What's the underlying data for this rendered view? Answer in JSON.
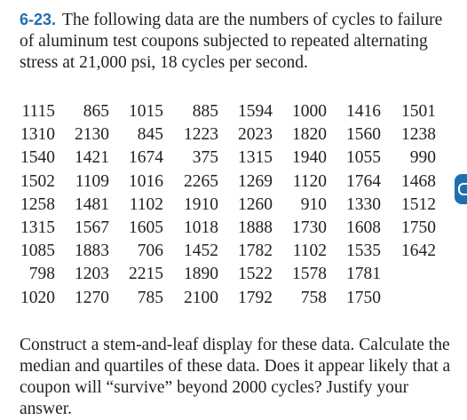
{
  "problem": {
    "number": "6-23.",
    "text": "The following data are the numbers of cycles to failure of aluminum test coupons subjected to repeated alternating stress at 21,000 psi, 18 cycles per second."
  },
  "data_rows": [
    [
      "1115",
      "865",
      "1015",
      "885",
      "1594",
      "1000",
      "1416",
      "1501"
    ],
    [
      "1310",
      "2130",
      "845",
      "1223",
      "2023",
      "1820",
      "1560",
      "1238"
    ],
    [
      "1540",
      "1421",
      "1674",
      "375",
      "1315",
      "1940",
      "1055",
      "990"
    ],
    [
      "1502",
      "1109",
      "1016",
      "2265",
      "1269",
      "1120",
      "1764",
      "1468"
    ],
    [
      "1258",
      "1481",
      "1102",
      "1910",
      "1260",
      "910",
      "1330",
      "1512"
    ],
    [
      "1315",
      "1567",
      "1605",
      "1018",
      "1888",
      "1730",
      "1608",
      "1750"
    ],
    [
      "1085",
      "1883",
      "706",
      "1452",
      "1782",
      "1102",
      "1535",
      "1642"
    ],
    [
      "798",
      "1203",
      "2215",
      "1890",
      "1522",
      "1578",
      "1781",
      ""
    ],
    [
      "1020",
      "1270",
      "785",
      "2100",
      "1792",
      "758",
      "1750",
      ""
    ]
  ],
  "footer": {
    "text": "Construct a stem-and-leaf display for these data. Calculate the median and quartiles of these data. Does it appear likely that a coupon will “survive” beyond 2000 cycles? Justify your answer."
  },
  "colors": {
    "accent": "#1f6fb0",
    "text": "#231f20"
  }
}
